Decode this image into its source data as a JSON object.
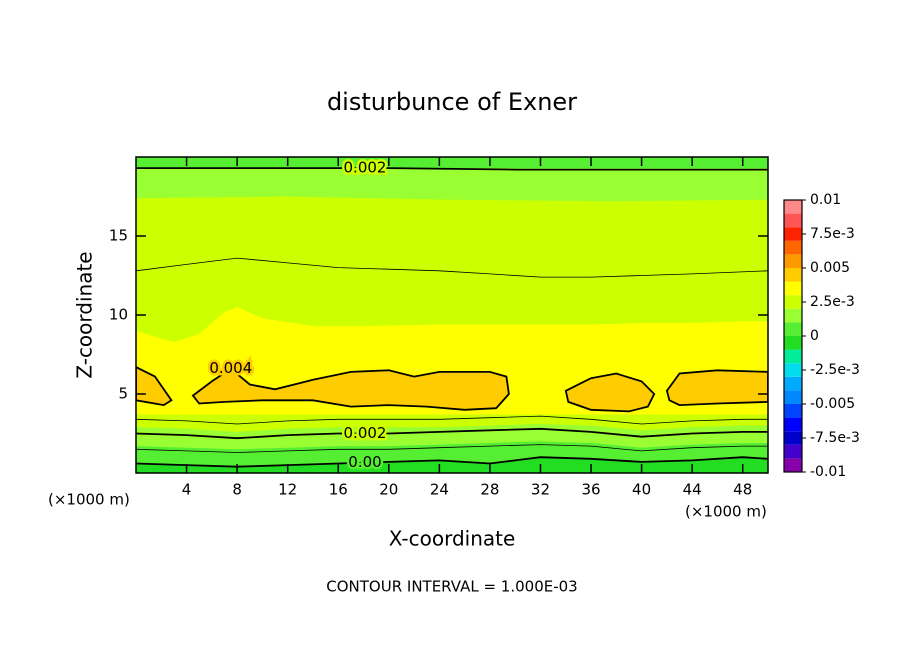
{
  "chart_data": {
    "type": "contour",
    "title": "disturbunce of Exner",
    "x_label": "X-coordinate",
    "y_label": "Z-coordinate",
    "x_unit_label": "(×1000 m)",
    "footnote": "CONTOUR INTERVAL = 1.000E-03",
    "xlim": [
      0,
      50
    ],
    "ylim": [
      0,
      20
    ],
    "xticks": [
      4,
      8,
      12,
      16,
      20,
      24,
      28,
      32,
      36,
      40,
      44,
      48
    ],
    "yticks": [
      5,
      10,
      15
    ],
    "colorbar": {
      "bins": [
        -0.01,
        -0.009,
        -0.008,
        -0.007,
        -0.006,
        -0.005,
        -0.004,
        -0.003,
        -0.002,
        -0.001,
        0,
        0.001,
        0.002,
        0.003,
        0.004,
        0.005,
        0.006,
        0.007,
        0.008,
        0.009,
        0.01
      ],
      "colors": [
        "#8800aa",
        "#4400cc",
        "#0000cc",
        "#0000ff",
        "#0044ff",
        "#0088ff",
        "#00aaff",
        "#00ddee",
        "#00ee99",
        "#22dd22",
        "#55ee33",
        "#99ff33",
        "#ccff00",
        "#ffff00",
        "#ffcc00",
        "#ff9900",
        "#ff6600",
        "#ff2200",
        "#ff5555",
        "#ff8888"
      ],
      "ticks": [
        {
          "value": -0.01,
          "label": "-0.01"
        },
        {
          "value": -0.0075,
          "label": "-7.5e-3"
        },
        {
          "value": -0.005,
          "label": "-0.005"
        },
        {
          "value": -0.0025,
          "label": "-2.5e-3"
        },
        0,
        {
          "value": 0.0025,
          "label": "2.5e-3"
        },
        0.005,
        {
          "value": 0.0075,
          "label": "7.5e-3"
        },
        0.01
      ]
    },
    "fill_regions": [
      {
        "level": 0.002,
        "x": [
          0,
          50,
          50,
          0
        ],
        "z": [
          0,
          0,
          20,
          20
        ]
      },
      {
        "level": 0.001,
        "x": [
          0,
          12,
          25,
          38,
          50,
          50,
          0
        ],
        "z": [
          17.4,
          17.5,
          17.3,
          17.2,
          17.3,
          20,
          20
        ]
      },
      {
        "level": 0,
        "x": [
          0,
          50,
          50,
          0
        ],
        "z": [
          19.3,
          19.3,
          20,
          20
        ]
      },
      {
        "level": 0.003,
        "x": [
          0,
          50,
          50,
          48,
          44,
          40,
          36,
          30,
          24,
          18,
          14,
          10,
          8,
          7,
          5,
          3,
          2,
          0
        ],
        "z": [
          3.7,
          3.7,
          9.6,
          9.6,
          9.5,
          9.5,
          9.4,
          9.4,
          9.4,
          9.3,
          9.3,
          9.8,
          10.5,
          10.2,
          8.8,
          8.3,
          8.5,
          9.0
        ]
      },
      {
        "level": 0.002,
        "x": [
          0,
          4,
          8,
          12,
          16,
          20,
          24,
          28,
          32,
          36,
          40,
          44,
          48,
          50,
          50,
          0
        ],
        "z": [
          3.5,
          3.4,
          3.3,
          3.5,
          3.6,
          3.6,
          3.6,
          3.6,
          3.7,
          3.5,
          3.3,
          3.5,
          3.5,
          3.5,
          0,
          0
        ]
      },
      {
        "level": 0.001,
        "x": [
          0,
          4,
          8,
          12,
          16,
          20,
          24,
          28,
          32,
          36,
          40,
          44,
          48,
          50,
          50,
          0
        ],
        "z": [
          2.9,
          2.8,
          2.6,
          2.8,
          2.9,
          2.9,
          2.9,
          3.0,
          3.1,
          3.0,
          2.7,
          2.9,
          3.0,
          3.0,
          0,
          0
        ]
      },
      {
        "level": 0,
        "x": [
          0,
          4,
          8,
          12,
          16,
          20,
          24,
          28,
          32,
          36,
          40,
          44,
          48,
          50,
          50,
          0
        ],
        "z": [
          1.7,
          1.6,
          1.5,
          1.6,
          1.7,
          1.7,
          1.8,
          1.9,
          2.0,
          1.9,
          1.6,
          1.8,
          1.9,
          1.9,
          0,
          0
        ]
      },
      {
        "level": -0.001,
        "x": [
          0,
          4,
          8,
          12,
          16,
          20,
          24,
          28,
          32,
          36,
          40,
          44,
          48,
          50,
          50,
          0
        ],
        "z": [
          0.6,
          0.5,
          0.4,
          0.5,
          0.6,
          0.7,
          0.8,
          0.6,
          1.0,
          0.9,
          0.7,
          0.8,
          1.0,
          0.9,
          0,
          0
        ]
      }
    ],
    "contours": [
      {
        "level": 0.002,
        "label": "0.002",
        "closed": false,
        "x": [
          0,
          10,
          20,
          30,
          40,
          50
        ],
        "z": [
          19.3,
          19.3,
          19.3,
          19.2,
          19.2,
          19.2
        ]
      },
      {
        "level": 0.003,
        "closed": false,
        "x": [
          0,
          4,
          8,
          12,
          16,
          20,
          24,
          28,
          32,
          36,
          40,
          44,
          50
        ],
        "z": [
          12.8,
          13.2,
          13.6,
          13.3,
          13.0,
          12.9,
          12.8,
          12.6,
          12.4,
          12.4,
          12.5,
          12.6,
          12.8
        ]
      },
      {
        "level": 0.004,
        "closed": true,
        "x": [
          0,
          1.5,
          2.8,
          2.2,
          0
        ],
        "z": [
          6.7,
          6.1,
          4.6,
          4.3,
          4.6
        ]
      },
      {
        "level": 0.004,
        "label": "0.004",
        "closed": true,
        "x": [
          4.5,
          6,
          7.5,
          9,
          11,
          14,
          17,
          20,
          22,
          24,
          26,
          28,
          29.3,
          29.5,
          28.5,
          26,
          23,
          20,
          17,
          14,
          10,
          7,
          5
        ],
        "z": [
          4.9,
          5.8,
          6.6,
          5.6,
          5.3,
          5.9,
          6.4,
          6.5,
          6.1,
          6.4,
          6.4,
          6.4,
          6.1,
          5.0,
          4.1,
          4.0,
          4.2,
          4.3,
          4.2,
          4.6,
          4.6,
          4.5,
          4.4
        ]
      },
      {
        "level": 0.004,
        "closed": true,
        "x": [
          34,
          36,
          38,
          40,
          41,
          40.5,
          39,
          36,
          34.2
        ],
        "z": [
          5.2,
          6.0,
          6.3,
          5.8,
          5.0,
          4.2,
          3.9,
          4.0,
          4.5
        ]
      },
      {
        "level": 0.004,
        "closed": true,
        "x": [
          42,
          43,
          46,
          50,
          50,
          46,
          43,
          42.2
        ],
        "z": [
          5.2,
          6.3,
          6.5,
          6.4,
          4.5,
          4.4,
          4.3,
          4.6
        ]
      },
      {
        "level": 0.003,
        "closed": false,
        "x": [
          0,
          4,
          8,
          12,
          16,
          20,
          24,
          28,
          32,
          36,
          40,
          44,
          48,
          50
        ],
        "z": [
          3.4,
          3.3,
          3.1,
          3.3,
          3.4,
          3.4,
          3.4,
          3.5,
          3.6,
          3.4,
          3.1,
          3.3,
          3.4,
          3.4
        ]
      },
      {
        "level": 0.002,
        "label": "0.002",
        "closed": false,
        "x": [
          0,
          4,
          8,
          12,
          16,
          20,
          24,
          28,
          32,
          36,
          40,
          44,
          48,
          50
        ],
        "z": [
          2.5,
          2.4,
          2.2,
          2.4,
          2.5,
          2.5,
          2.6,
          2.7,
          2.8,
          2.6,
          2.3,
          2.5,
          2.6,
          2.6
        ]
      },
      {
        "level": 0.001,
        "closed": false,
        "x": [
          0,
          4,
          8,
          12,
          16,
          20,
          24,
          28,
          32,
          36,
          40,
          44,
          48,
          50
        ],
        "z": [
          1.5,
          1.4,
          1.3,
          1.4,
          1.5,
          1.5,
          1.6,
          1.7,
          1.8,
          1.7,
          1.4,
          1.6,
          1.7,
          1.7
        ]
      },
      {
        "level": 0,
        "label": "0.00",
        "closed": false,
        "x": [
          0,
          4,
          8,
          12,
          16,
          20,
          24,
          28,
          32,
          36,
          40,
          44,
          48,
          50
        ],
        "z": [
          0.6,
          0.5,
          0.4,
          0.5,
          0.6,
          0.7,
          0.8,
          0.6,
          1.0,
          0.9,
          0.7,
          0.8,
          1.0,
          0.9
        ]
      }
    ]
  }
}
